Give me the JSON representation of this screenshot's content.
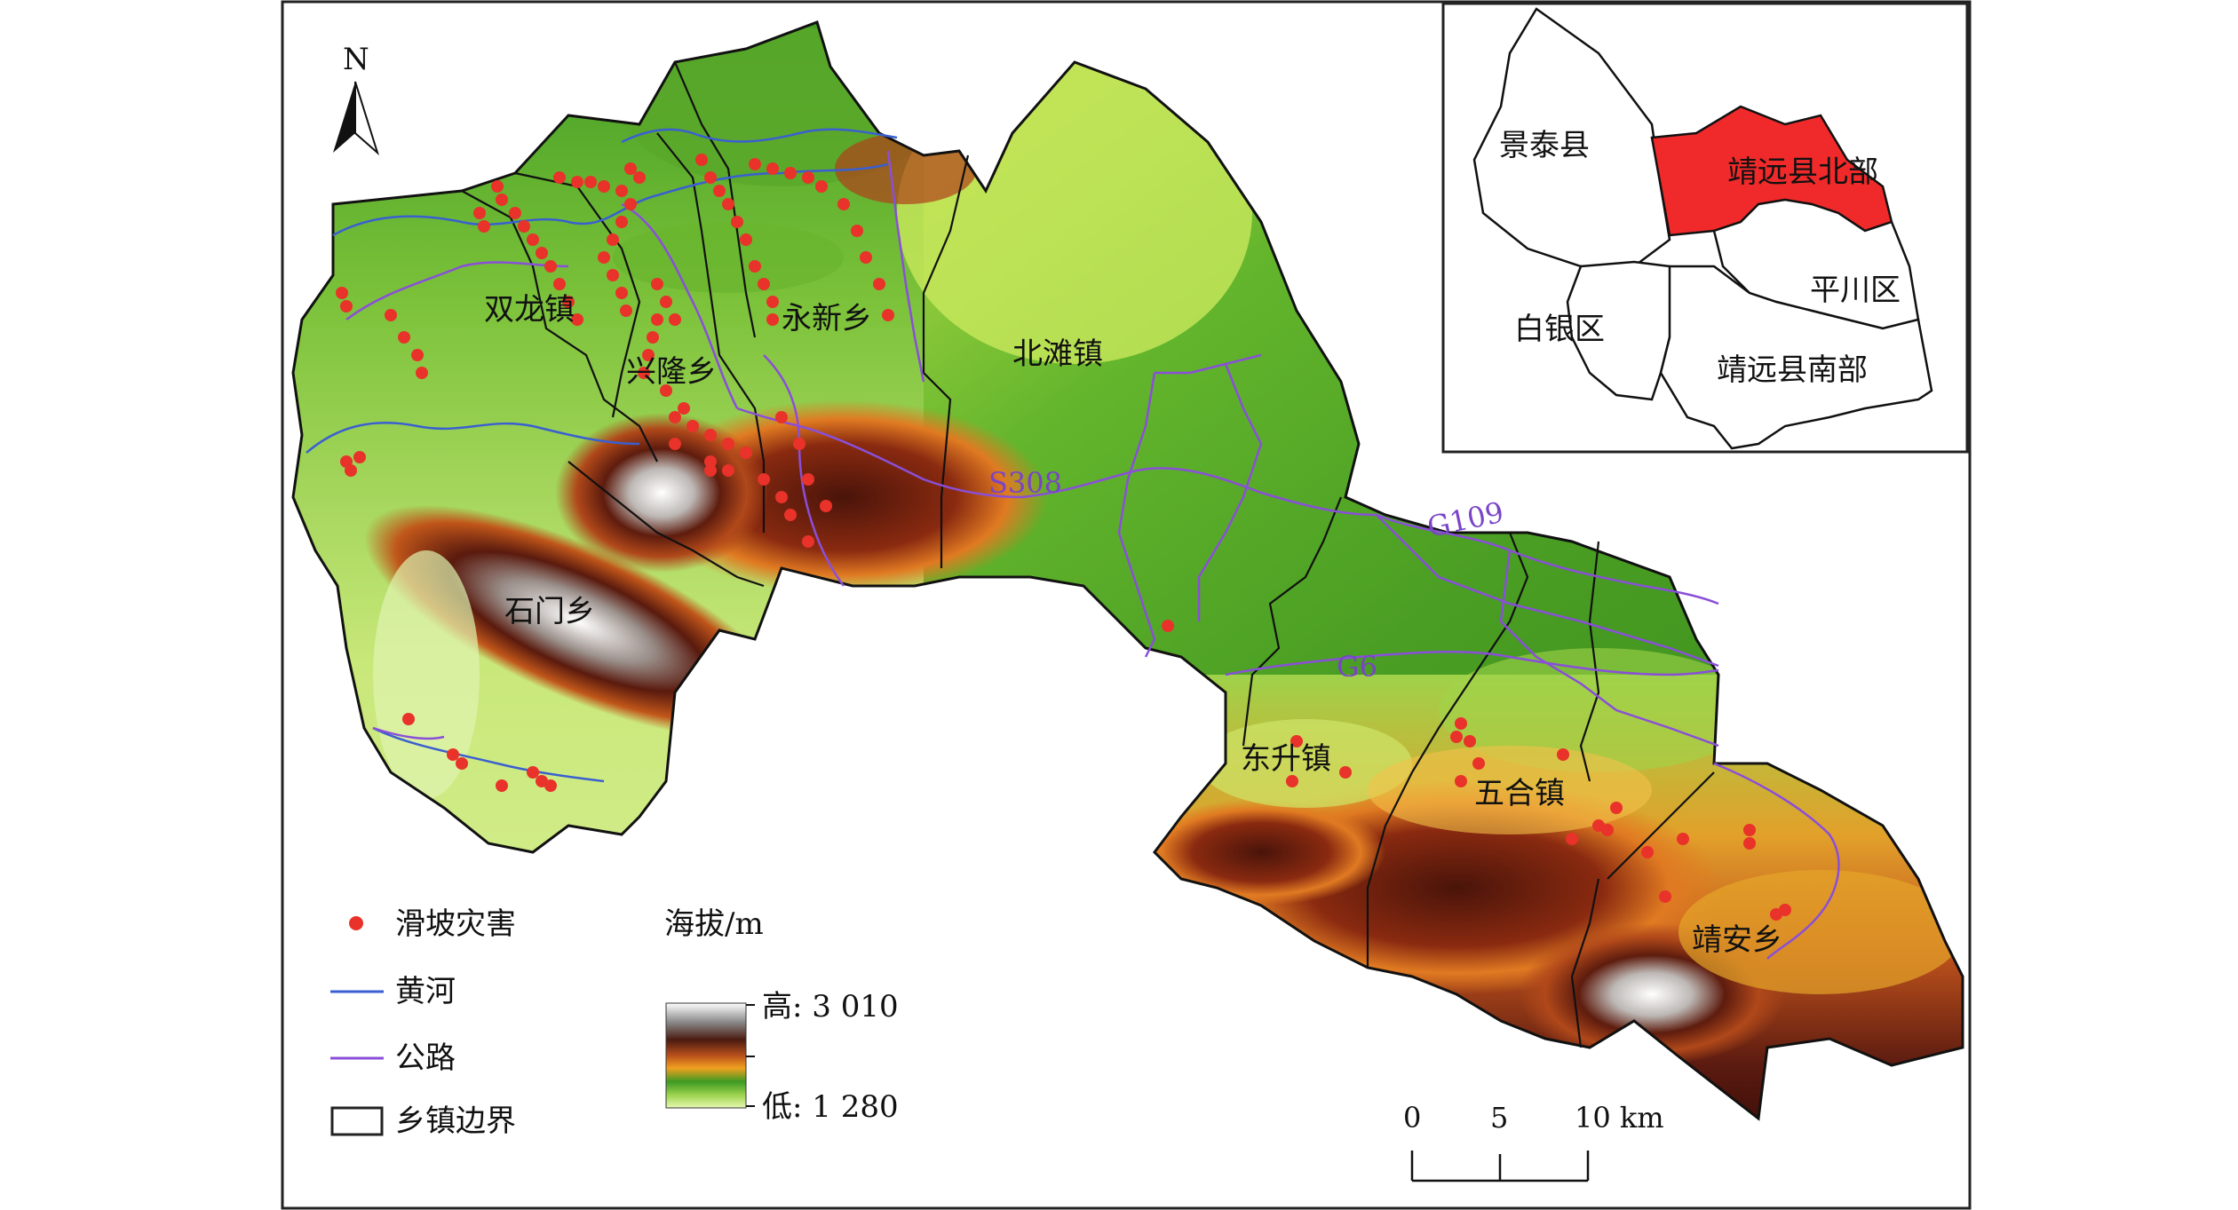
{
  "north_arrow": {
    "label": "N"
  },
  "towns": [
    {
      "name": "双龙镇"
    },
    {
      "name": "兴隆乡"
    },
    {
      "name": "永新乡"
    },
    {
      "name": "北滩镇"
    },
    {
      "name": "石门乡"
    },
    {
      "name": "东升镇"
    },
    {
      "name": "五合镇"
    },
    {
      "name": "靖安乡"
    }
  ],
  "roads": [
    {
      "name": "S308"
    },
    {
      "name": "G109"
    },
    {
      "name": "G6"
    }
  ],
  "inset": {
    "regions": [
      {
        "name": "景泰县",
        "highlight": false
      },
      {
        "name": "靖远县北部",
        "highlight": true
      },
      {
        "name": "平川区",
        "highlight": false
      },
      {
        "name": "白银区",
        "highlight": false
      },
      {
        "name": "靖远县南部",
        "highlight": false
      }
    ],
    "highlight_color": "#f02a2a"
  },
  "legend": {
    "items": [
      {
        "label": "滑坡灾害",
        "symbol": "landslide-point",
        "color": "#e8322a"
      },
      {
        "label": "黄河",
        "symbol": "river-line",
        "color": "#3a5fd0"
      },
      {
        "label": "公路",
        "symbol": "road-line",
        "color": "#8a4fd8"
      },
      {
        "label": "乡镇边界",
        "symbol": "boundary-box",
        "color": "#222222"
      }
    ],
    "elevation_title": "海拔/m",
    "elevation_high": "高: 3 010",
    "elevation_low": "低: 1 280"
  },
  "scale_bar": {
    "ticks": [
      "0",
      "5",
      "10 km"
    ]
  }
}
